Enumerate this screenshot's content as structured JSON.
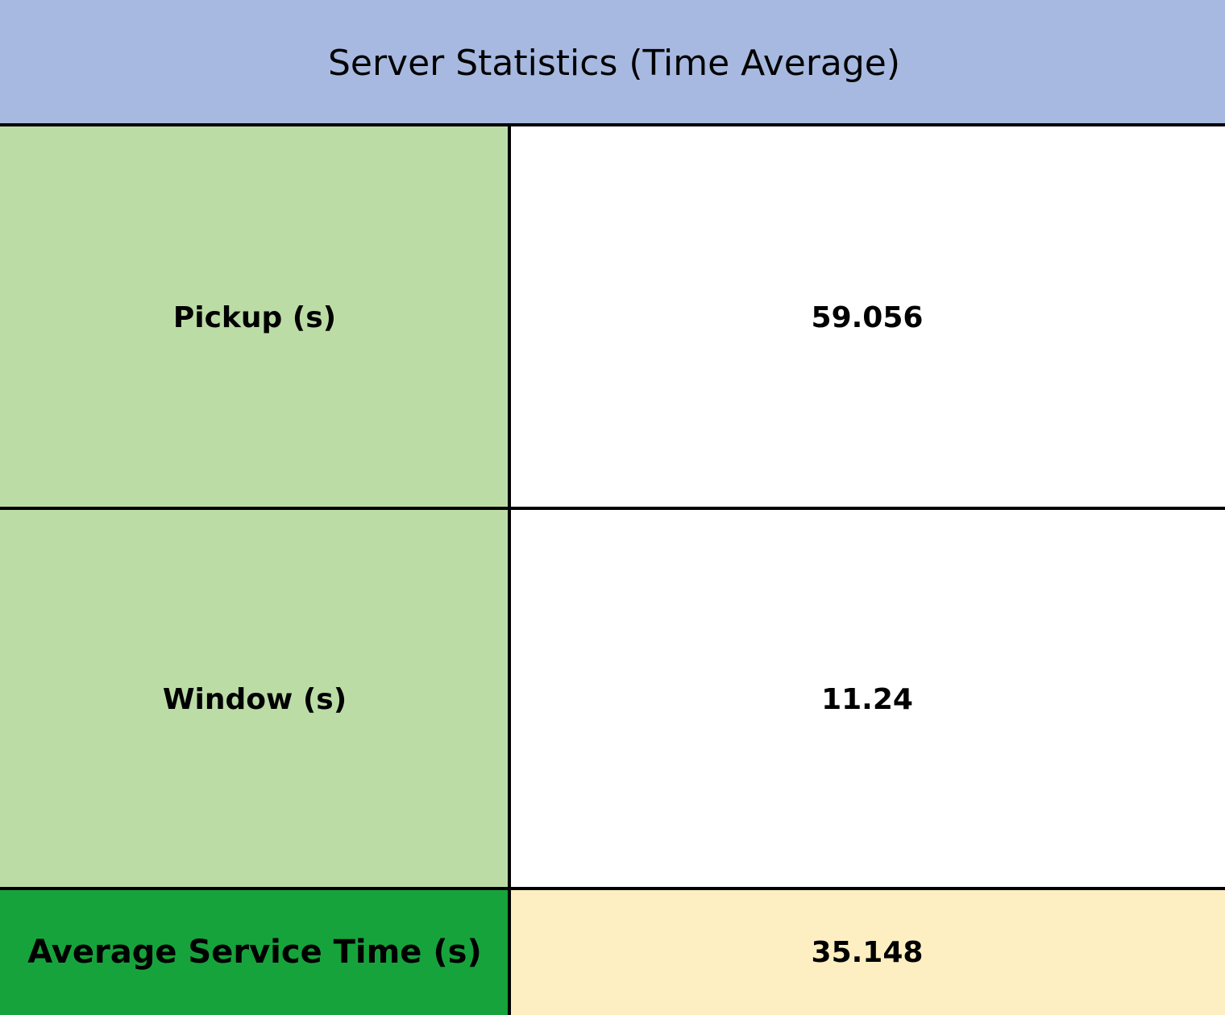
{
  "table": {
    "title": "Server Statistics (Time Average)",
    "rows": [
      {
        "label": "Pickup (s)",
        "value": "59.056"
      },
      {
        "label": "Window (s)",
        "value": "11.24"
      }
    ],
    "summary": {
      "label": "Average Service Time (s)",
      "value": "35.148"
    }
  },
  "colors": {
    "header": "#a7b9e0",
    "label_cell": "#bcdca6",
    "summary_label": "#17a33c",
    "summary_value": "#fdefc2",
    "borders": "#000000"
  }
}
